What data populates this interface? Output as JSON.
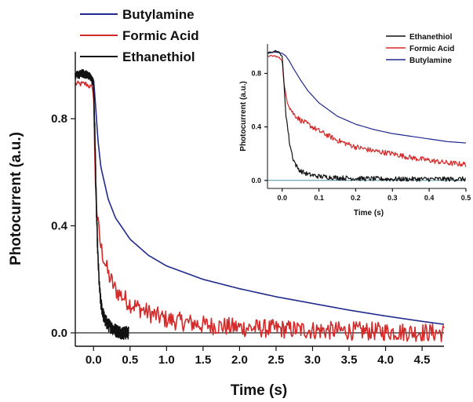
{
  "chart_data": [
    {
      "id": "main",
      "type": "line",
      "xlabel": "Time (s)",
      "ylabel": "Photocurrent (a.u.)",
      "xlim": [
        -0.25,
        4.8
      ],
      "ylim": [
        -0.05,
        1.05
      ],
      "xticks": [
        0.0,
        0.5,
        1.0,
        1.5,
        2.0,
        2.5,
        3.0,
        3.5,
        4.0,
        4.5
      ],
      "xtick_labels": [
        "0.0",
        "0.5",
        "1.0",
        "1.5",
        "2.0",
        "2.5",
        "3.0",
        "3.5",
        "4.0",
        "4.5"
      ],
      "yticks": [
        0.0,
        0.4,
        0.8
      ],
      "ytick_labels": [
        "0.0",
        "0.4",
        "0.8"
      ],
      "baseline": 0.0,
      "legend_position": "top-left",
      "series": [
        {
          "name": "Butylamine",
          "color": "#1f2a8c",
          "x": [
            -0.25,
            -0.1,
            0.0,
            0.03,
            0.06,
            0.1,
            0.2,
            0.3,
            0.5,
            0.75,
            1.0,
            1.5,
            2.0,
            2.5,
            3.0,
            3.5,
            4.0,
            4.5,
            4.8
          ],
          "y": [
            0.96,
            0.96,
            0.95,
            0.84,
            0.72,
            0.62,
            0.5,
            0.43,
            0.35,
            0.29,
            0.25,
            0.2,
            0.165,
            0.135,
            0.11,
            0.085,
            0.063,
            0.043,
            0.032
          ]
        },
        {
          "name": "Formic Acid",
          "color": "#d42a2a",
          "x": [
            -0.25,
            -0.1,
            0.0,
            0.02,
            0.05,
            0.1,
            0.2,
            0.3,
            0.5,
            0.75,
            1.0,
            1.5,
            2.0,
            3.0,
            4.0,
            4.8
          ],
          "y": [
            0.93,
            0.93,
            0.91,
            0.6,
            0.43,
            0.32,
            0.22,
            0.16,
            0.11,
            0.075,
            0.05,
            0.03,
            0.02,
            0.01,
            0.005,
            0.0
          ]
        },
        {
          "name": "Ethanethiol",
          "color": "#111111",
          "x": [
            -0.25,
            -0.15,
            -0.05,
            0.0,
            0.02,
            0.04,
            0.06,
            0.08,
            0.1,
            0.15,
            0.2,
            0.3,
            0.4,
            0.48
          ],
          "y": [
            0.96,
            0.97,
            0.96,
            0.93,
            0.72,
            0.45,
            0.28,
            0.17,
            0.11,
            0.05,
            0.03,
            0.01,
            0.0,
            0.0
          ]
        }
      ]
    },
    {
      "id": "inset",
      "type": "line",
      "xlabel": "Time (s)",
      "ylabel": "Photocurrent (a.u.)",
      "xlim": [
        -0.04,
        0.5
      ],
      "ylim": [
        -0.06,
        1.02
      ],
      "xticks": [
        0.0,
        0.1,
        0.2,
        0.3,
        0.4,
        0.5
      ],
      "xtick_labels": [
        "0.0",
        "0.1",
        "0.2",
        "0.3",
        "0.4",
        "0.5"
      ],
      "yticks": [
        0.0,
        0.4,
        0.8
      ],
      "ytick_labels": [
        "0.0",
        "0.4",
        "0.8"
      ],
      "baseline": 0.0,
      "legend_position": "top-right",
      "series": [
        {
          "name": "Ethanethiol",
          "color": "#111111",
          "x": [
            -0.04,
            -0.02,
            -0.01,
            0.0,
            0.005,
            0.01,
            0.02,
            0.03,
            0.04,
            0.05,
            0.07,
            0.1,
            0.15,
            0.2,
            0.3,
            0.4,
            0.5
          ],
          "y": [
            0.95,
            0.97,
            0.96,
            0.93,
            0.72,
            0.5,
            0.28,
            0.16,
            0.1,
            0.07,
            0.045,
            0.03,
            0.02,
            0.015,
            0.01,
            0.01,
            0.01
          ]
        },
        {
          "name": "Formic Acid",
          "color": "#d42a2a",
          "x": [
            -0.04,
            -0.02,
            -0.01,
            0.0,
            0.005,
            0.01,
            0.02,
            0.03,
            0.05,
            0.07,
            0.1,
            0.15,
            0.2,
            0.25,
            0.3,
            0.35,
            0.4,
            0.45,
            0.5
          ],
          "y": [
            0.93,
            0.93,
            0.92,
            0.9,
            0.72,
            0.63,
            0.55,
            0.5,
            0.45,
            0.42,
            0.37,
            0.3,
            0.25,
            0.22,
            0.2,
            0.17,
            0.15,
            0.13,
            0.12
          ]
        },
        {
          "name": "Butylamine",
          "color": "#1f2a8c",
          "x": [
            -0.04,
            -0.02,
            0.0,
            0.01,
            0.02,
            0.03,
            0.05,
            0.07,
            0.1,
            0.15,
            0.2,
            0.25,
            0.3,
            0.35,
            0.4,
            0.45,
            0.5
          ],
          "y": [
            0.95,
            0.96,
            0.95,
            0.93,
            0.89,
            0.84,
            0.75,
            0.67,
            0.58,
            0.48,
            0.42,
            0.38,
            0.35,
            0.33,
            0.31,
            0.29,
            0.28
          ]
        }
      ]
    }
  ]
}
